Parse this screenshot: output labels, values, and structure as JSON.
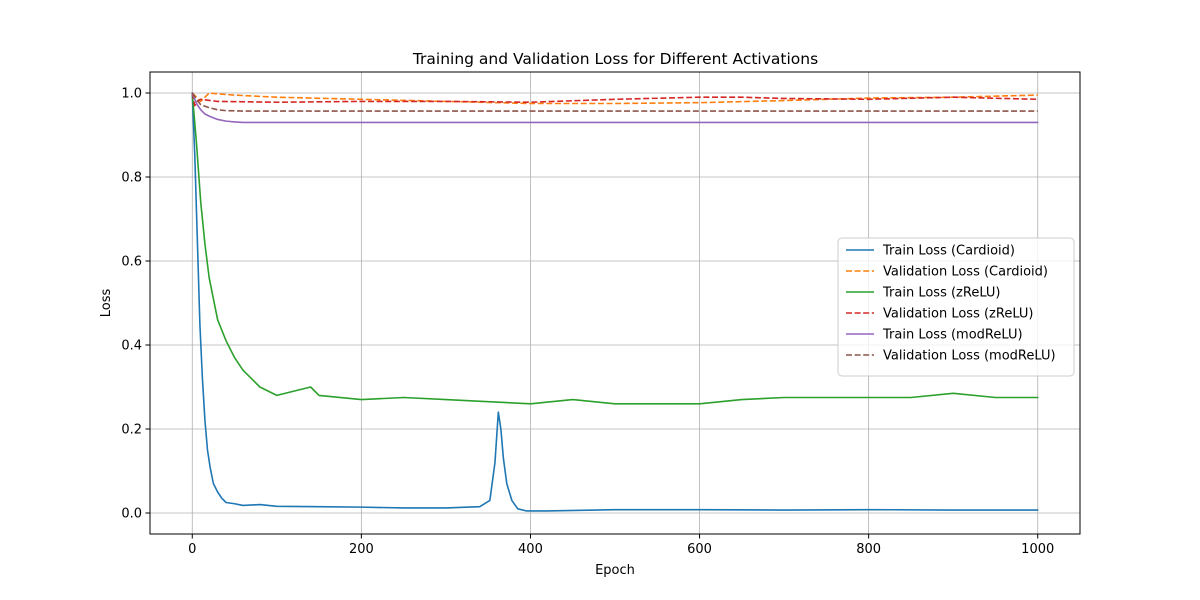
{
  "chart_data": {
    "type": "line",
    "title": "Training and Validation Loss for Different Activations",
    "xlabel": "Epoch",
    "ylabel": "Loss",
    "xlim": [
      -50,
      1050
    ],
    "ylim": [
      -0.05,
      1.05
    ],
    "xticks": [
      0,
      200,
      400,
      600,
      800,
      1000
    ],
    "yticks": [
      0.0,
      0.2,
      0.4,
      0.6,
      0.8,
      1.0
    ],
    "xtick_labels": [
      "0",
      "200",
      "400",
      "600",
      "800",
      "1000"
    ],
    "ytick_labels": [
      "0.0",
      "0.2",
      "0.4",
      "0.6",
      "0.8",
      "1.0"
    ],
    "grid": true,
    "legend_position": "center-right",
    "series": [
      {
        "name": "Train Loss (Cardioid)",
        "color": "#1f77b4",
        "style": "solid",
        "x": [
          0,
          3,
          6,
          9,
          12,
          15,
          18,
          21,
          25,
          30,
          35,
          40,
          50,
          60,
          80,
          100,
          150,
          200,
          250,
          300,
          340,
          352,
          358,
          362,
          365,
          368,
          372,
          378,
          385,
          395,
          420,
          500,
          600,
          700,
          800,
          900,
          1000
        ],
        "y": [
          1.0,
          0.85,
          0.65,
          0.45,
          0.32,
          0.22,
          0.15,
          0.11,
          0.07,
          0.05,
          0.035,
          0.025,
          0.022,
          0.018,
          0.02,
          0.016,
          0.015,
          0.014,
          0.012,
          0.012,
          0.015,
          0.03,
          0.12,
          0.24,
          0.2,
          0.13,
          0.07,
          0.03,
          0.01,
          0.005,
          0.005,
          0.008,
          0.008,
          0.007,
          0.008,
          0.007,
          0.007
        ]
      },
      {
        "name": "Validation Loss (Cardioid)",
        "color": "#ff7f0e",
        "style": "dashed",
        "x": [
          0,
          10,
          20,
          30,
          50,
          100,
          200,
          300,
          400,
          500,
          600,
          700,
          800,
          900,
          1000
        ],
        "y": [
          1.0,
          0.98,
          1.0,
          0.998,
          0.995,
          0.99,
          0.985,
          0.98,
          0.975,
          0.975,
          0.977,
          0.982,
          0.988,
          0.99,
          0.995
        ]
      },
      {
        "name": "Train Loss (zReLU)",
        "color": "#2ca02c",
        "style": "solid",
        "x": [
          0,
          5,
          10,
          15,
          20,
          25,
          30,
          40,
          50,
          60,
          70,
          80,
          100,
          140,
          150,
          200,
          250,
          300,
          350,
          400,
          450,
          500,
          550,
          600,
          650,
          700,
          750,
          800,
          850,
          900,
          950,
          1000
        ],
        "y": [
          1.0,
          0.88,
          0.74,
          0.64,
          0.56,
          0.51,
          0.46,
          0.41,
          0.37,
          0.34,
          0.32,
          0.3,
          0.28,
          0.3,
          0.28,
          0.27,
          0.275,
          0.27,
          0.265,
          0.26,
          0.27,
          0.26,
          0.26,
          0.26,
          0.27,
          0.275,
          0.275,
          0.275,
          0.275,
          0.285,
          0.275,
          0.275
        ]
      },
      {
        "name": "Validation Loss (zReLU)",
        "color": "#d62728",
        "style": "dashed",
        "x": [
          0,
          3,
          6,
          10,
          30,
          100,
          200,
          300,
          400,
          500,
          600,
          650,
          700,
          800,
          900,
          1000
        ],
        "y": [
          1.0,
          0.97,
          0.98,
          0.985,
          0.98,
          0.978,
          0.98,
          0.98,
          0.978,
          0.985,
          0.99,
          0.99,
          0.987,
          0.985,
          0.99,
          0.985
        ]
      },
      {
        "name": "Train Loss (modReLU)",
        "color": "#9467bd",
        "style": "solid",
        "x": [
          0,
          5,
          10,
          15,
          20,
          30,
          40,
          50,
          60,
          80,
          100,
          200,
          300,
          400,
          500,
          600,
          700,
          800,
          900,
          1000
        ],
        "y": [
          1.0,
          0.975,
          0.96,
          0.95,
          0.945,
          0.937,
          0.933,
          0.931,
          0.93,
          0.93,
          0.93,
          0.93,
          0.93,
          0.93,
          0.93,
          0.93,
          0.93,
          0.93,
          0.93,
          0.93
        ]
      },
      {
        "name": "Validation Loss (modReLU)",
        "color": "#8c564b",
        "style": "dashed",
        "x": [
          0,
          5,
          10,
          20,
          30,
          40,
          60,
          100,
          200,
          400,
          600,
          800,
          1000
        ],
        "y": [
          1.0,
          0.985,
          0.972,
          0.965,
          0.96,
          0.958,
          0.957,
          0.957,
          0.957,
          0.957,
          0.957,
          0.957,
          0.957
        ]
      }
    ]
  }
}
